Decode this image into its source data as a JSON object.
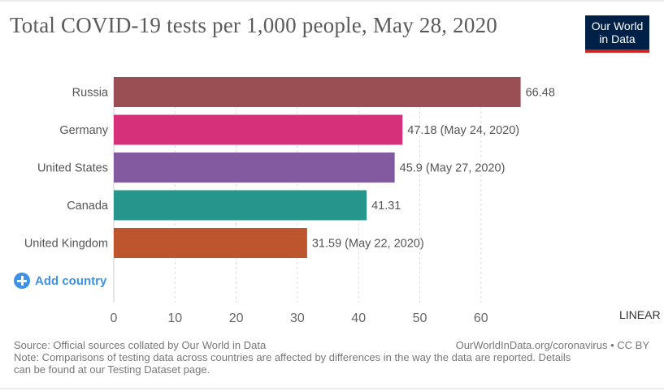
{
  "header": {
    "title": "Total COVID-19 tests per 1,000 people, May 28, 2020",
    "logo_line1": "Our World",
    "logo_line2": "in Data"
  },
  "controls": {
    "add_country_label": "Add country",
    "scale_label": "LINEAR"
  },
  "footer": {
    "source": "Source: Official sources collated by Our World in Data",
    "note_line1": "Note: Comparisons of testing data across countries are affected by differences in the way the data are reported. Details",
    "note_line2": "can be found at our Testing Dataset page.",
    "credit": "OurWorldInData.org/coronavirus • CC BY"
  },
  "chart_data": {
    "type": "bar",
    "orientation": "horizontal",
    "title": "Total COVID-19 tests per 1,000 people, May 28, 2020",
    "xlabel": "",
    "ylabel": "",
    "xlim": [
      0,
      66.48
    ],
    "x_ticks": [
      0,
      10,
      20,
      30,
      40,
      50,
      60
    ],
    "grid": "vertical dashed",
    "categories": [
      "Russia",
      "Germany",
      "United States",
      "Canada",
      "United Kingdom"
    ],
    "values": [
      66.48,
      47.18,
      45.9,
      41.31,
      31.59
    ],
    "value_labels": [
      "66.48",
      "47.18 (May 24, 2020)",
      "45.9 (May 27, 2020)",
      "41.31",
      "31.59 (May 22, 2020)"
    ],
    "colors": [
      "#9a4f55",
      "#d6307a",
      "#835aa0",
      "#26968d",
      "#bd562e"
    ]
  }
}
